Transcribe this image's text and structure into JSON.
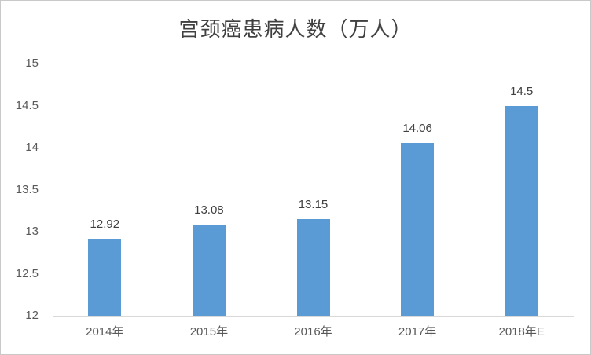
{
  "window": {
    "background": "#ffffff",
    "border_color": "#c9c9c9"
  },
  "chart_data": {
    "type": "bar",
    "title": "宫颈癌患病人数（万人）",
    "categories": [
      "2014年",
      "2015年",
      "2016年",
      "2017年",
      "2018年E"
    ],
    "values": [
      12.92,
      13.08,
      13.15,
      14.06,
      14.5
    ],
    "data_labels": [
      "12.92",
      "13.08",
      "13.15",
      "14.06",
      "14.5"
    ],
    "xlabel": "",
    "ylabel": "",
    "ylim": [
      12,
      15
    ],
    "yticks": [
      12,
      12.5,
      13,
      13.5,
      14,
      14.5,
      15
    ],
    "ytick_labels": [
      "12",
      "12.5",
      "13",
      "13.5",
      "14",
      "14.5",
      "15"
    ],
    "grid": false,
    "legend": null,
    "bar_color": "#5b9bd5",
    "axis_line_color": "#d9d9d9",
    "data_label_color": "#404040",
    "tick_label_color": "#595959",
    "title_color": "#404040"
  }
}
